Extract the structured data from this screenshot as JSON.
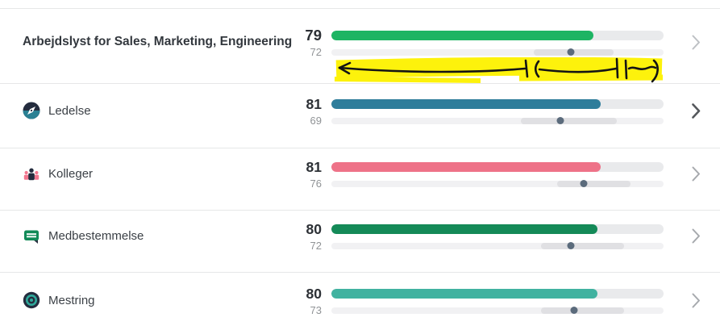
{
  "rows": [
    {
      "label": "Arbejdslyst for Sales, Marketing, Engineering",
      "score": "79",
      "benchmark": "72",
      "bar_color": "#1db463",
      "range": [
        61,
        85
      ],
      "icon": null,
      "chevron_color": "#bdc0c4",
      "chevron_weight": "2",
      "annotation": "hand-drawn yellow highlighter band with black dimension/arrow marks under benchmark bar",
      "annotation_highlight_color": "#fdf20c",
      "annotation_ink_color": "#141414"
    },
    {
      "label": "Ledelse",
      "score": "81",
      "benchmark": "69",
      "bar_color": "#2e7d9b",
      "range": [
        57,
        86
      ],
      "icon": "compass-icon",
      "chevron_color": "#55585c",
      "chevron_weight": "2.6"
    },
    {
      "label": "Kolleger",
      "score": "81",
      "benchmark": "76",
      "bar_color": "#ee7288",
      "range": [
        68,
        90
      ],
      "icon": "team-icon",
      "chevron_color": "#a6a9ad",
      "chevron_weight": "2"
    },
    {
      "label": "Medbestemmelse",
      "score": "80",
      "benchmark": "72",
      "bar_color": "#148a58",
      "range": [
        63,
        88
      ],
      "icon": "speech-bubble-icon",
      "chevron_color": "#a6a9ad",
      "chevron_weight": "2"
    },
    {
      "label": "Mestring",
      "score": "80",
      "benchmark": "73",
      "bar_color": "#41b2a0",
      "range": [
        63,
        88
      ],
      "icon": "bullseye-icon",
      "chevron_color": "#a6a9ad",
      "chevron_weight": "2"
    }
  ],
  "icon_colors": {
    "dark_navy": "#242c3e",
    "teal": "#2a8093",
    "pink": "#f2778f",
    "green": "#118a57",
    "target_teal": "#2fa89a"
  }
}
